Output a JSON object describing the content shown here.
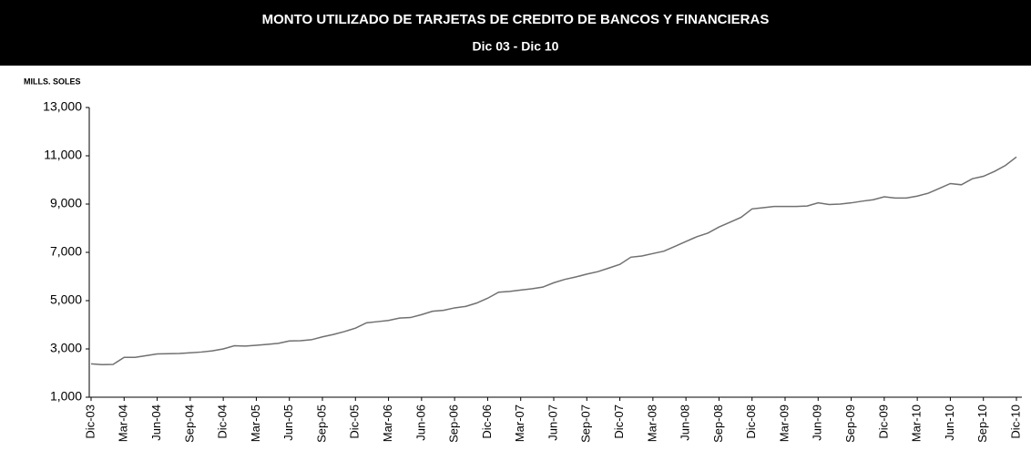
{
  "chart_data": {
    "type": "line",
    "title": "MONTO UTILIZADO DE TARJETAS DE CREDITO DE BANCOS Y FINANCIERAS",
    "subtitle": "Dic 03 - Dic 10",
    "y_label": "MILLS. SOLES",
    "categories": [
      "Dic-03",
      null,
      null,
      "Mar-04",
      null,
      null,
      "Jun-04",
      null,
      null,
      "Sep-04",
      null,
      null,
      "Dic-04",
      null,
      null,
      "Mar-05",
      null,
      null,
      "Jun-05",
      null,
      null,
      "Sep-05",
      null,
      null,
      "Dic-05",
      null,
      null,
      "Mar-06",
      null,
      null,
      "Jun-06",
      null,
      null,
      "Sep-06",
      null,
      null,
      "Dic-06",
      null,
      null,
      "Mar-07",
      null,
      null,
      "Jun-07",
      null,
      null,
      "Sep-07",
      null,
      null,
      "Dic-07",
      null,
      null,
      "Mar-08",
      null,
      null,
      "Jun-08",
      null,
      null,
      "Sep-08",
      null,
      null,
      "Dic-08",
      null,
      null,
      "Mar-09",
      null,
      null,
      "Jun-09",
      null,
      null,
      "Sep-09",
      null,
      null,
      "Dic-09",
      null,
      null,
      "Mar-10",
      null,
      null,
      "Jun-10",
      null,
      null,
      "Sep-10",
      null,
      null,
      "Dic-10"
    ],
    "values": [
      2380,
      2350,
      2360,
      2650,
      2650,
      2720,
      2790,
      2800,
      2810,
      2840,
      2870,
      2920,
      3000,
      3130,
      3120,
      3150,
      3190,
      3230,
      3330,
      3340,
      3380,
      3500,
      3600,
      3720,
      3860,
      4080,
      4130,
      4180,
      4280,
      4300,
      4420,
      4560,
      4600,
      4700,
      4760,
      4900,
      5100,
      5350,
      5380,
      5440,
      5490,
      5560,
      5740,
      5880,
      5980,
      6100,
      6200,
      6350,
      6500,
      6800,
      6850,
      6950,
      7050,
      7250,
      7450,
      7650,
      7800,
      8050,
      8250,
      8450,
      8800,
      8850,
      8900,
      8900,
      8900,
      8920,
      9050,
      8980,
      9000,
      9050,
      9120,
      9180,
      9300,
      9250,
      9250,
      9330,
      9450,
      9650,
      9850,
      9800,
      10050,
      10150,
      10350,
      10600,
      10950
    ],
    "color": "#707070",
    "ylim": [
      1000,
      13000
    ],
    "yticks": [
      {
        "value": 1000,
        "label": "1,000"
      },
      {
        "value": 3000,
        "label": "3,000"
      },
      {
        "value": 5000,
        "label": "5,000"
      },
      {
        "value": 7000,
        "label": "7,000"
      },
      {
        "value": 9000,
        "label": "9,000"
      },
      {
        "value": 11000,
        "label": "11,000"
      },
      {
        "value": 13000,
        "label": "13,000"
      }
    ],
    "grid": false
  }
}
